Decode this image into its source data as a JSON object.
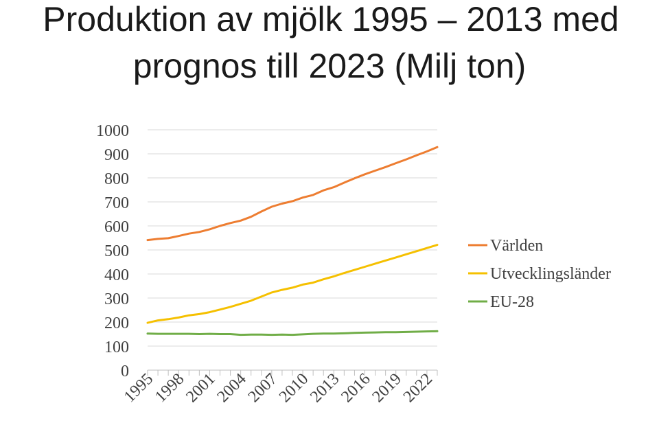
{
  "chart_data": {
    "type": "line",
    "title": "Produktion av mjölk 1995 – 2013 med prognos till 2023 (Milj ton)",
    "title_lines": [
      "Produktion av mjölk 1995 – 2013 med",
      "prognos till 2023 (Milj ton)"
    ],
    "xlabel": "",
    "ylabel": "",
    "ylim": [
      0,
      1000
    ],
    "y_ticks": [
      0,
      100,
      200,
      300,
      400,
      500,
      600,
      700,
      800,
      900,
      1000
    ],
    "x": [
      1995,
      1996,
      1997,
      1998,
      1999,
      2000,
      2001,
      2002,
      2003,
      2004,
      2005,
      2006,
      2007,
      2008,
      2009,
      2010,
      2011,
      2012,
      2013,
      2014,
      2015,
      2016,
      2017,
      2018,
      2019,
      2020,
      2021,
      2022,
      2023
    ],
    "x_tick_labels": [
      "1995",
      "1998",
      "2001",
      "2004",
      "2007",
      "2010",
      "2013",
      "2016",
      "2019",
      "2022"
    ],
    "grid": true,
    "legend_position": "right",
    "series": [
      {
        "name": "Världen",
        "color": "#ED7D31",
        "values": [
          541,
          546,
          549,
          558,
          568,
          575,
          586,
          600,
          612,
          622,
          638,
          660,
          680,
          693,
          703,
          718,
          729,
          748,
          761,
          780,
          798,
          815,
          830,
          845,
          861,
          877,
          894,
          910,
          928
        ]
      },
      {
        "name": "Utvecklingsländer",
        "color": "#F5C000",
        "values": [
          197,
          207,
          212,
          219,
          228,
          233,
          241,
          252,
          263,
          276,
          289,
          306,
          323,
          334,
          343,
          356,
          364,
          378,
          390,
          404,
          417,
          430,
          443,
          456,
          469,
          482,
          495,
          508,
          521
        ]
      },
      {
        "name": "EU-28",
        "color": "#70AD47",
        "values": [
          152,
          151,
          151,
          151,
          151,
          150,
          151,
          150,
          150,
          147,
          148,
          148,
          147,
          148,
          147,
          149,
          151,
          152,
          152,
          153,
          155,
          156,
          157,
          158,
          158,
          159,
          160,
          161,
          162
        ]
      }
    ]
  }
}
